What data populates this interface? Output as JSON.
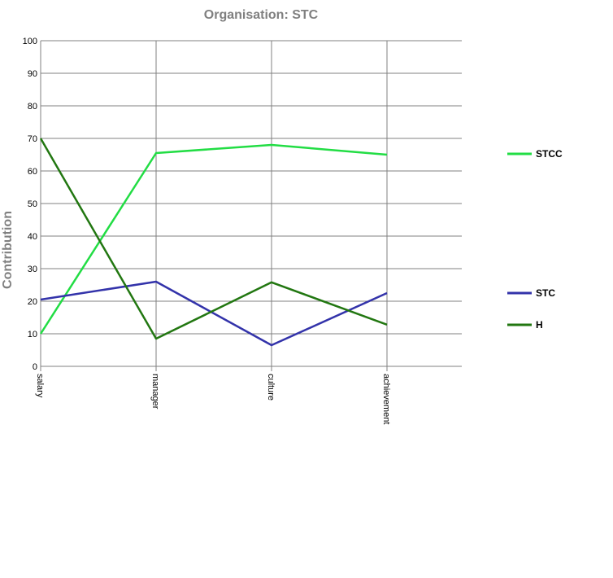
{
  "chart_data": {
    "type": "line",
    "title": "Organisation: STC",
    "xlabel": "",
    "ylabel": "Contribution",
    "categories": [
      "salary",
      "manager",
      "culture",
      "achievement"
    ],
    "ylim": [
      0,
      100
    ],
    "yticks": [
      0,
      10,
      20,
      30,
      40,
      50,
      60,
      70,
      80,
      90,
      100
    ],
    "grid": true,
    "legend_placement": "right",
    "series": [
      {
        "name": "STCC",
        "color": "#22dd44",
        "values": [
          10,
          65.5,
          68,
          65
        ]
      },
      {
        "name": "STC",
        "color": "#3333aa",
        "values": [
          20.5,
          26,
          6.5,
          22.5
        ]
      },
      {
        "name": "H",
        "color": "#227711",
        "values": [
          70,
          8.5,
          25.8,
          12.8
        ]
      }
    ]
  }
}
